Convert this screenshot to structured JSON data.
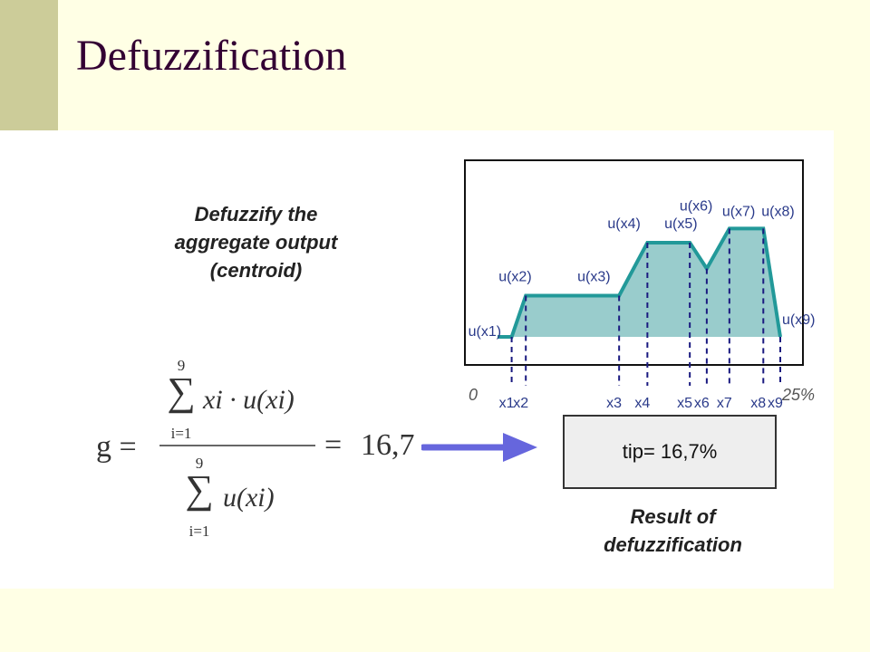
{
  "slide": {
    "title": "Defuzzification",
    "caption_top": [
      "Defuzzify the",
      "aggregate output",
      "(centroid)"
    ],
    "caption_bottom": [
      "Result of",
      "defuzzification"
    ],
    "result": "tip= 16,7%",
    "formula": {
      "lhs": "g =",
      "sum_upper": "9",
      "sum_lower": "i=1",
      "numerator_term": "xi · u(xi)",
      "denominator_term": "u(xi)",
      "equals": "=",
      "value": "16,7"
    },
    "arrow_color": "#6666dd"
  },
  "chart_data": {
    "type": "area",
    "x_axis_labels": [
      "0",
      "25%"
    ],
    "x_ticks": [
      "x1",
      "x2",
      "x3",
      "x4",
      "x5",
      "x6",
      "x7",
      "x8",
      "x9"
    ],
    "point_labels": [
      "u(x1)",
      "u(x2)",
      "u(x3)",
      "u(x4)",
      "u(x5)",
      "u(x6)",
      "u(x7)",
      "u(x8)",
      "u(x9)"
    ],
    "outline": [
      [
        0.0,
        0.0
      ],
      [
        0.05,
        0.0
      ],
      [
        0.1,
        0.35
      ],
      [
        0.43,
        0.35
      ],
      [
        0.53,
        0.8
      ],
      [
        0.68,
        0.8
      ],
      [
        0.74,
        0.58
      ],
      [
        0.82,
        0.92
      ],
      [
        0.94,
        0.92
      ],
      [
        1.0,
        0.0
      ]
    ],
    "sample_x": [
      0.05,
      0.1,
      0.43,
      0.53,
      0.68,
      0.74,
      0.82,
      0.94,
      1.0
    ],
    "sample_y": [
      0.0,
      0.35,
      0.35,
      0.8,
      0.8,
      0.58,
      0.92,
      0.92,
      0.0
    ],
    "fill_color": "#99cccc",
    "line_color": "#229999",
    "dash_color": "#1a1a80"
  }
}
